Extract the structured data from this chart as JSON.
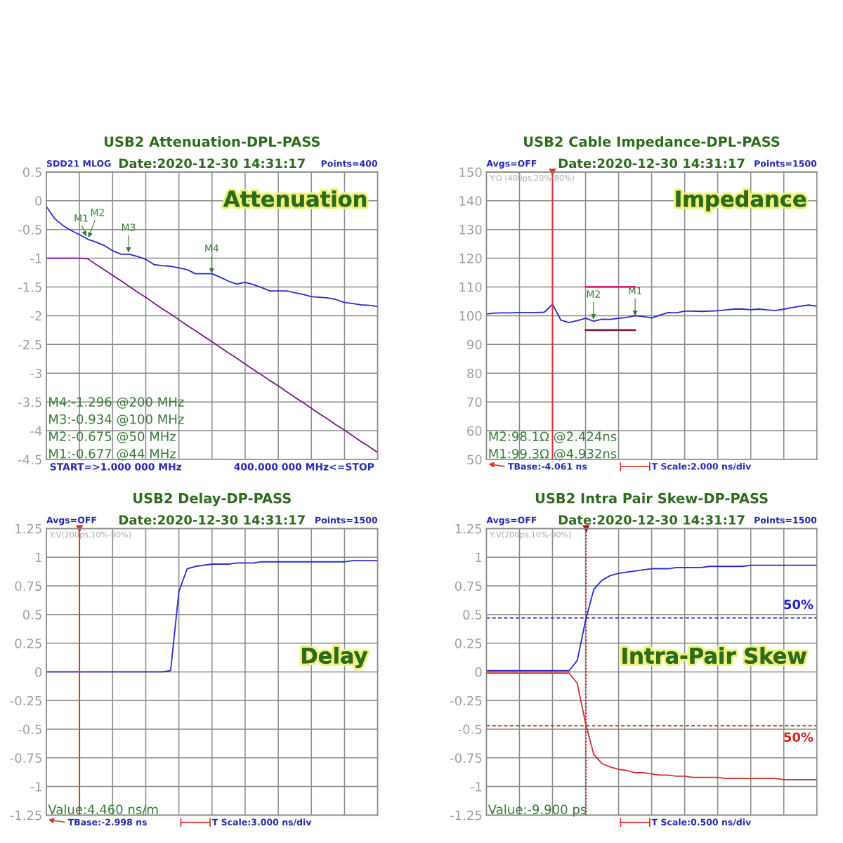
{
  "chart_data": [
    {
      "type": "line",
      "title": "USB2 Attenuation-DPL-PASS",
      "subtitle": "Date:2020-12-30 14:31:17",
      "categories": [
        null,
        null,
        null,
        null,
        null,
        null,
        null,
        null,
        null,
        null,
        null,
        null,
        null,
        null,
        null,
        null,
        null,
        null,
        null,
        null,
        null,
        null,
        null,
        null,
        null,
        null,
        null,
        null,
        null,
        null,
        null,
        null,
        null,
        null,
        null,
        null,
        null,
        null,
        null,
        null,
        null
      ],
      "ylim": [
        -4.5,
        0.5
      ],
      "yticks": [
        -4.5,
        -4,
        -3.5,
        -3,
        -2.5,
        -2,
        -1.5,
        -1,
        -0.5,
        0,
        0.5
      ],
      "grid": true,
      "tick_labels": "y",
      "series": [
        {
          "color": "#2a2acf",
          "values": [
            -0.1,
            -0.31,
            -0.43,
            -0.52,
            -0.59,
            -0.67,
            -0.72,
            -0.78,
            -0.87,
            -0.93,
            -0.93,
            -0.97,
            -1.02,
            -1.11,
            -1.13,
            -1.14,
            -1.17,
            -1.2,
            -1.27,
            -1.27,
            -1.27,
            -1.33,
            -1.4,
            -1.45,
            -1.42,
            -1.46,
            -1.51,
            -1.57,
            -1.57,
            -1.57,
            -1.6,
            -1.63,
            -1.67,
            -1.68,
            -1.69,
            -1.72,
            -1.77,
            -1.79,
            -1.81,
            -1.82,
            -1.84
          ]
        },
        {
          "color": "#7a1a8a",
          "values": [
            -1,
            -1,
            -1,
            -1,
            -1,
            -1.01,
            -1.11,
            -1.2,
            -1.3,
            -1.39,
            -1.49,
            -1.59,
            -1.68,
            -1.78,
            -1.88,
            -1.97,
            -2.07,
            -2.17,
            -2.26,
            -2.36,
            -2.45,
            -2.55,
            -2.65,
            -2.74,
            -2.84,
            -2.94,
            -3.03,
            -3.13,
            -3.22,
            -3.32,
            -3.42,
            -3.51,
            -3.61,
            -3.71,
            -3.8,
            -3.9,
            -3.99,
            -4.09,
            -4.19,
            -4.28,
            -4.38
          ]
        }
      ],
      "annotations": [
        "SDD21 MLOG",
        "Points=400",
        "Attenuation",
        "M4:-1.296 @200 MHz",
        "M3:-0.934 @100 MHz",
        "M2:-0.675 @50 MHz",
        "M1:-0.677 @44 MHz",
        "START=>1.000 000 MHz",
        "400.000 000 MHz<=STOP",
        "M1",
        {
          "text": "M2",
          "y": -0.675
        },
        {
          "text": "M3",
          "y": -0.934
        },
        {
          "text": "M4",
          "y": -1.296
        }
      ]
    },
    {
      "type": "line",
      "title": "USB2 Cable Impedance-DPL-PASS",
      "subtitle": "Date:2020-12-30 14:31:17",
      "categories": [
        null,
        null,
        null,
        null,
        null,
        null,
        null,
        null,
        null,
        null,
        null,
        null,
        null,
        null,
        null,
        null,
        null,
        null,
        null,
        null,
        null,
        null,
        null,
        null,
        null,
        null,
        null,
        null,
        null,
        null,
        null,
        null,
        null,
        null,
        null,
        null,
        null,
        null,
        null,
        null,
        null
      ],
      "ylim": [
        50,
        150
      ],
      "yticks": [
        50,
        60,
        70,
        80,
        90,
        100,
        110,
        120,
        130,
        140,
        150
      ],
      "grid": true,
      "tick_labels": "y",
      "series": [
        {
          "color": "#2a2acf",
          "values": [
            100.6,
            100.9,
            101.0,
            101.0,
            101.1,
            101.1,
            101.1,
            101.2,
            104.0,
            98.5,
            97.6,
            98.3,
            99.1,
            98.1,
            98.8,
            98.7,
            99.1,
            99.4,
            100.0,
            99.7,
            99.2,
            100.2,
            101.1,
            101.0,
            101.6,
            101.6,
            101.5,
            101.6,
            101.7,
            102.0,
            102.3,
            102.3,
            102.1,
            102.3,
            102.0,
            101.8,
            102.3,
            102.8,
            103.3,
            103.7,
            103.3
          ]
        },
        {
          "color": "#e0207a",
          "values": [
            null,
            null,
            null,
            null,
            null,
            null,
            null,
            null,
            null,
            null,
            null,
            null,
            110,
            110,
            110,
            110,
            110,
            110,
            110,
            null,
            null,
            null,
            null,
            null,
            null,
            null,
            null,
            null,
            null,
            null,
            null,
            null,
            null,
            null,
            null,
            null,
            null,
            null,
            null,
            null,
            null
          ]
        },
        {
          "color": "#8b1a3a",
          "values": [
            null,
            null,
            null,
            null,
            null,
            null,
            null,
            null,
            null,
            null,
            null,
            null,
            95,
            95,
            95,
            95,
            95,
            95,
            95,
            null,
            null,
            null,
            null,
            null,
            null,
            null,
            null,
            null,
            null,
            null,
            null,
            null,
            null,
            null,
            null,
            null,
            null,
            null,
            null,
            null,
            null
          ]
        }
      ],
      "annotations": [
        "Avgs=OFF",
        "Points=1500",
        "Y:Ω (400ps,20%-80%)",
        "Impedance",
        "M2:98.1Ω @2.424ns",
        "M1:99.3Ω @4.932ns",
        "TBase:-4.061 ns",
        "T Scale:2.000 ns/div",
        {
          "text": "M1",
          "y": 99.3
        },
        {
          "text": "M2",
          "y": 98.1
        }
      ]
    },
    {
      "type": "line",
      "title": "USB2 Delay-DP-PASS",
      "subtitle": "Date:2020-12-30 14:31:17",
      "categories": [
        null,
        null,
        null,
        null,
        null,
        null,
        null,
        null,
        null,
        null,
        null,
        null,
        null,
        null,
        null,
        null,
        null,
        null,
        null,
        null,
        null,
        null,
        null,
        null,
        null,
        null,
        null,
        null,
        null,
        null,
        null,
        null,
        null,
        null,
        null,
        null,
        null,
        null,
        null,
        null,
        null
      ],
      "ylim": [
        -1.25,
        1.25
      ],
      "yticks": [
        -1.25,
        -1,
        -0.75,
        -0.5,
        -0.25,
        0,
        0.25,
        0.5,
        0.75,
        1,
        1.25
      ],
      "grid": true,
      "tick_labels": "y",
      "series": [
        {
          "color": "#2a2acf",
          "values": [
            0,
            0,
            0,
            0,
            0,
            0,
            0,
            0,
            0,
            0,
            0,
            0,
            0,
            0,
            0,
            0.01,
            0.7,
            0.9,
            0.92,
            0.93,
            0.94,
            0.94,
            0.94,
            0.95,
            0.95,
            0.95,
            0.96,
            0.96,
            0.96,
            0.96,
            0.96,
            0.96,
            0.96,
            0.96,
            0.96,
            0.96,
            0.96,
            0.97,
            0.97,
            0.97,
            0.97
          ]
        }
      ],
      "annotations": [
        "Avgs=OFF",
        "Points=1500",
        "Y:V(200ps,10%-90%)",
        "Delay",
        "Value:4.460 ns/m",
        "TBase:-2.998 ns",
        "T Scale:3.000 ns/div"
      ]
    },
    {
      "type": "line",
      "title": "USB2 Intra Pair Skew-DP-PASS",
      "subtitle": "Date:2020-12-30 14:31:17",
      "categories": [
        null,
        null,
        null,
        null,
        null,
        null,
        null,
        null,
        null,
        null,
        null,
        null,
        null,
        null,
        null,
        null,
        null,
        null,
        null,
        null,
        null,
        null,
        null,
        null,
        null,
        null,
        null,
        null,
        null,
        null,
        null,
        null,
        null,
        null,
        null,
        null,
        null,
        null,
        null,
        null,
        null
      ],
      "ylim": [
        -1.25,
        1.25
      ],
      "yticks": [
        -1.25,
        -1,
        -0.75,
        -0.5,
        -0.25,
        0,
        0.25,
        0.5,
        0.75,
        1,
        1.25
      ],
      "grid": true,
      "tick_labels": "y",
      "series": [
        {
          "color": "#2a2acf",
          "values": [
            0.01,
            0.01,
            0.01,
            0.01,
            0.01,
            0.01,
            0.01,
            0.01,
            0.01,
            0.01,
            0.01,
            0.1,
            0.45,
            0.72,
            0.8,
            0.84,
            0.86,
            0.87,
            0.88,
            0.89,
            0.9,
            0.9,
            0.9,
            0.91,
            0.91,
            0.91,
            0.91,
            0.92,
            0.92,
            0.92,
            0.92,
            0.92,
            0.93,
            0.93,
            0.93,
            0.93,
            0.93,
            0.93,
            0.93,
            0.93,
            0.93
          ]
        },
        {
          "color": "#d83030",
          "values": [
            -0.01,
            -0.01,
            -0.01,
            -0.01,
            -0.01,
            -0.01,
            -0.01,
            -0.01,
            -0.01,
            -0.01,
            -0.01,
            -0.1,
            -0.45,
            -0.72,
            -0.8,
            -0.83,
            -0.85,
            -0.86,
            -0.88,
            -0.88,
            -0.89,
            -0.9,
            -0.9,
            -0.91,
            -0.91,
            -0.92,
            -0.92,
            -0.92,
            -0.92,
            -0.93,
            -0.93,
            -0.93,
            -0.93,
            -0.93,
            -0.93,
            -0.93,
            -0.94,
            -0.94,
            -0.94,
            -0.94,
            -0.94
          ]
        }
      ],
      "ref_lines": [
        {
          "axis": "y",
          "value": 0.47,
          "color": "#2020d0",
          "line_style": "dashed"
        },
        {
          "axis": "y",
          "value": -0.47,
          "color": "#d02020",
          "line_style": "dashed"
        }
      ],
      "annotations": [
        "Avgs=OFF",
        "Points=1500",
        "Y:V(200ps,10%-90%)",
        "Intra-Pair Skew",
        "Value:-9.900 ps",
        "T Scale:0.500 ns/div",
        "50%",
        "50%"
      ]
    }
  ]
}
